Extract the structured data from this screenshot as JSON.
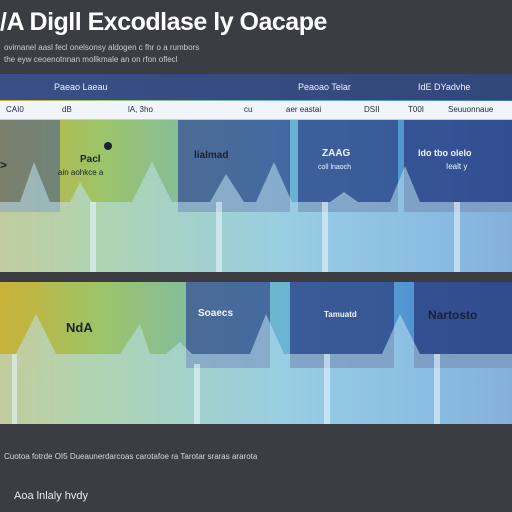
{
  "title": "/A Digll Excodlase ly Oacape",
  "subtitle_lines": [
    "ovimanel aasl fecl onelsonsy aldogen c fhr o a rumbors",
    "the eyw ceoenotnnan mollkmale an on rfon oflecl"
  ],
  "top_panel": {
    "headers": [
      "Paeao Laeau",
      "Peaoao Telar",
      "IdE DYadvhe"
    ],
    "labels": [
      "CAI0",
      "dB",
      "lA, 3ho",
      "cu",
      "aer eastai",
      "DSII",
      "T00I",
      "Seuuonnaue"
    ],
    "columns": [
      "Pacl",
      "lialmad",
      "ZAAG",
      "ldo tbo olelo"
    ],
    "column_sublabels": [
      "ain aohkce a",
      "",
      "coll lnaoch",
      "Iealt y"
    ]
  },
  "bottom_panel": {
    "columns": [
      "NdA",
      "Soaecs",
      "Tamuatd",
      "Nartosto"
    ],
    "column_sublabels": [
      "",
      "",
      "",
      ""
    ]
  },
  "caption": "Cuotoa fotrde OI5 Dueaunerdarcoas carotafoe ra Tarotar sraras ararota",
  "footer": "Aoa lnlaly hvdy",
  "colors": {
    "background": "#3b3d42",
    "header_strip": "#3a4f86",
    "band_dark": "#3d5b9c",
    "gradient_yellow": "#c9b23a",
    "gradient_blue": "#3f74c2"
  }
}
